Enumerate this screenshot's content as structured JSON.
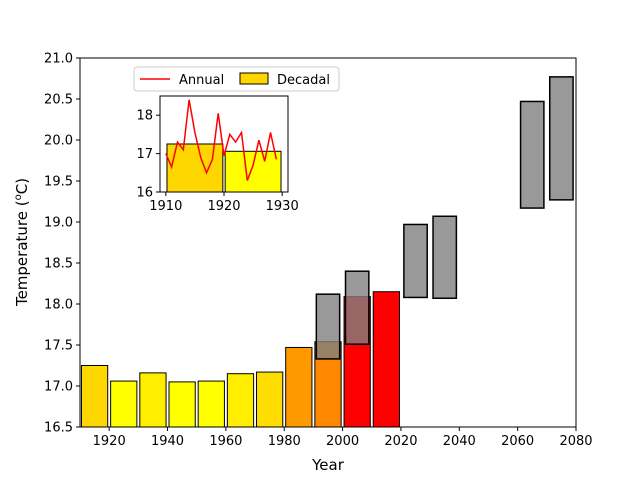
{
  "chart_data": {
    "type": "bar",
    "title": "",
    "xlabel": "Year",
    "ylabel_main": "Temperature (",
    "ylabel_sup": "o",
    "ylabel_unit": "C)",
    "xlim": [
      1910,
      2080
    ],
    "ylim": [
      16.5,
      21.0
    ],
    "xticks": [
      "1920",
      "1940",
      "1960",
      "1980",
      "2000",
      "2020",
      "2040",
      "2060",
      "2080"
    ],
    "yticks": [
      "16.5",
      "17.0",
      "17.5",
      "18.0",
      "18.5",
      "19.0",
      "19.5",
      "20.0",
      "20.5",
      "21.0"
    ],
    "decadal_bars": [
      {
        "decade": 1910,
        "value": 17.25,
        "color": "#FFD700"
      },
      {
        "decade": 1920,
        "value": 17.06,
        "color": "#FFFF00"
      },
      {
        "decade": 1930,
        "value": 17.16,
        "color": "#FFEE00"
      },
      {
        "decade": 1940,
        "value": 17.05,
        "color": "#FFFF00"
      },
      {
        "decade": 1950,
        "value": 17.06,
        "color": "#FFFF00"
      },
      {
        "decade": 1960,
        "value": 17.15,
        "color": "#FFEE00"
      },
      {
        "decade": 1970,
        "value": 17.17,
        "color": "#FFDD00"
      },
      {
        "decade": 1980,
        "value": 17.47,
        "color": "#FF9900"
      },
      {
        "decade": 1990,
        "value": 17.54,
        "color": "#FF8800"
      },
      {
        "decade": 2000,
        "value": 18.09,
        "color": "#FF0000"
      },
      {
        "decade": 2010,
        "value": 18.15,
        "color": "#FF0000"
      }
    ],
    "projection_ranges": [
      {
        "year": 1995,
        "low": 17.33,
        "high": 18.12
      },
      {
        "year": 2005,
        "low": 17.51,
        "high": 18.4
      },
      {
        "year": 2025,
        "low": 18.08,
        "high": 18.97
      },
      {
        "year": 2035,
        "low": 18.07,
        "high": 19.07
      },
      {
        "year": 2065,
        "low": 19.17,
        "high": 20.47
      },
      {
        "year": 2075,
        "low": 19.27,
        "high": 20.77
      }
    ],
    "legend": {
      "placement": "top-left",
      "entries": [
        {
          "label": "Annual",
          "kind": "line",
          "color": "#FF0000"
        },
        {
          "label": "Decadal",
          "kind": "box",
          "color": "#FFD700"
        }
      ]
    },
    "inset": {
      "type": "line+bar",
      "xlim": [
        1909,
        1931
      ],
      "ylim": [
        16,
        18.5
      ],
      "xticks": [
        "1910",
        "1920",
        "1930"
      ],
      "yticks": [
        "16",
        "17",
        "18"
      ],
      "annual": {
        "x": [
          1910,
          1911,
          1912,
          1913,
          1914,
          1915,
          1916,
          1917,
          1918,
          1919,
          1920,
          1921,
          1922,
          1923,
          1924,
          1925,
          1926,
          1927,
          1928,
          1929
        ],
        "y": [
          17.0,
          16.65,
          17.3,
          17.1,
          18.4,
          17.55,
          16.9,
          16.5,
          16.85,
          18.05,
          16.95,
          17.5,
          17.3,
          17.55,
          16.3,
          16.7,
          17.35,
          16.8,
          17.55,
          16.85
        ]
      },
      "decadal": [
        {
          "start": 1910,
          "end": 1919,
          "value": 17.25,
          "color": "#FFD700"
        },
        {
          "start": 1920,
          "end": 1929,
          "value": 17.06,
          "color": "#FFFF00"
        }
      ]
    }
  }
}
